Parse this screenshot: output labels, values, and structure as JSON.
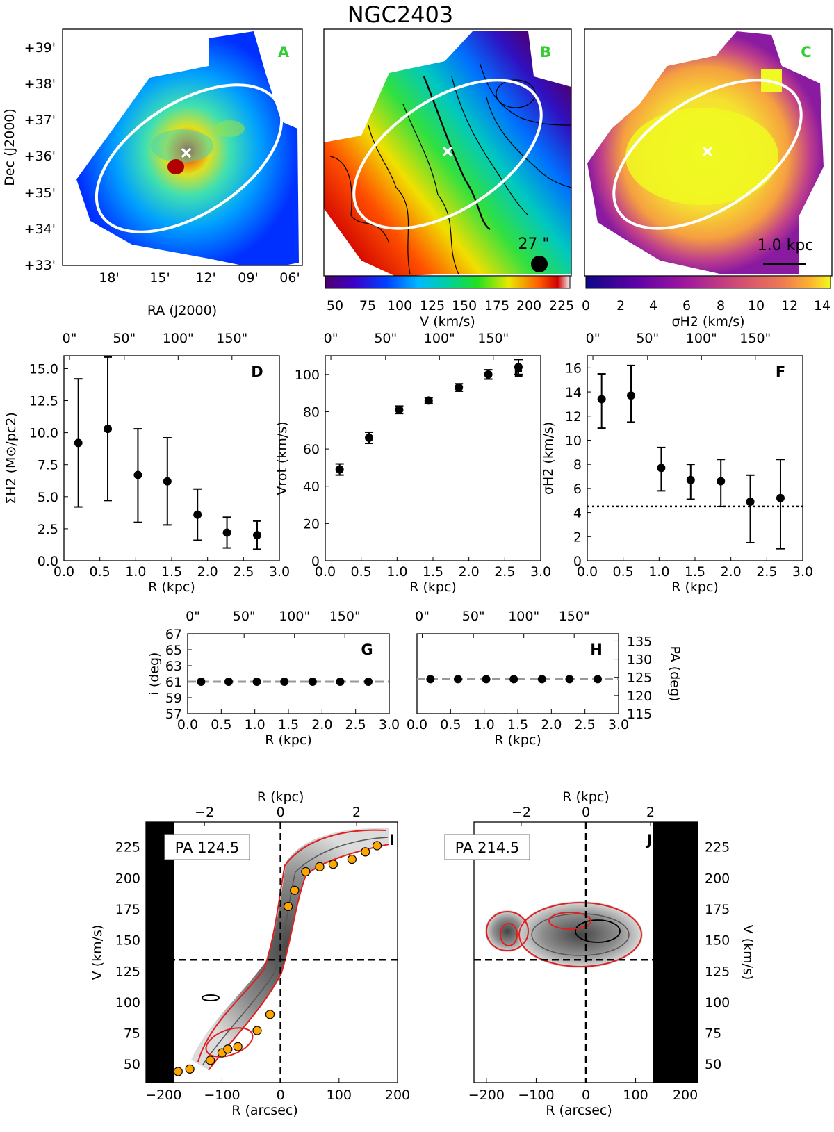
{
  "figure": {
    "title": "NGC2403",
    "colors": {
      "panel_letter": "#33cc33",
      "ellipse": "#ffffff",
      "marker": "#ffffff",
      "pv_points": "#ffa500",
      "pv_contour": "#e02020"
    }
  },
  "panel_A": {
    "letter": "A",
    "xlabel": "RA (J2000)",
    "ylabel": "Dec (J2000)",
    "xticks": [
      "18'",
      "15'",
      "12'",
      "09'",
      "06'"
    ],
    "yticks": [
      "+39'",
      "+38'",
      "+37'",
      "+36'",
      "+35'",
      "+34'",
      "+33'"
    ]
  },
  "panel_B": {
    "letter": "B",
    "beam_label": "27 \"",
    "colorbar_label": "V (km/s)",
    "colorbar_ticks": [
      "50",
      "75",
      "100",
      "125",
      "150",
      "175",
      "200",
      "225"
    ]
  },
  "panel_C": {
    "letter": "C",
    "scalebar_label": "1.0 kpc",
    "colorbar_label": "σH2 (km/s)",
    "colorbar_ticks": [
      "0",
      "2",
      "4",
      "6",
      "8",
      "10",
      "12",
      "14"
    ]
  },
  "chart_data": [
    {
      "id": "D",
      "type": "scatter",
      "letter": "D",
      "xlabel": "R (kpc)",
      "ylabel": "ΣH2 (M⊙/pc2)",
      "xlim": [
        0,
        3.0
      ],
      "ylim": [
        0,
        16
      ],
      "xticks": [
        "0.0",
        "0.5",
        "1.0",
        "1.5",
        "2.0",
        "2.5",
        "3.0"
      ],
      "yticks": [
        "0.0",
        "2.5",
        "5.0",
        "7.5",
        "10.0",
        "12.5",
        "15.0"
      ],
      "top_ticks": [
        "0\"",
        "50\"",
        "100\"",
        "150\""
      ],
      "x": [
        0.2,
        0.61,
        1.03,
        1.44,
        1.86,
        2.27,
        2.69
      ],
      "y": [
        9.2,
        10.3,
        6.7,
        6.2,
        3.6,
        2.2,
        2.0
      ],
      "yerr_low": [
        5.0,
        5.6,
        3.7,
        3.4,
        2.0,
        1.2,
        1.1
      ],
      "yerr_high": [
        5.0,
        5.6,
        3.6,
        3.4,
        2.0,
        1.2,
        1.1
      ]
    },
    {
      "id": "E",
      "type": "scatter",
      "letter": "E",
      "xlabel": "R (kpc)",
      "ylabel": "Vrot (km/s)",
      "xlim": [
        0,
        3.0
      ],
      "ylim": [
        0,
        110
      ],
      "xticks": [
        "0.0",
        "0.5",
        "1.0",
        "1.5",
        "2.0",
        "2.5",
        "3.0"
      ],
      "yticks": [
        "0",
        "20",
        "40",
        "60",
        "80",
        "100"
      ],
      "top_ticks": [
        "0\"",
        "50\"",
        "100\"",
        "150\""
      ],
      "x": [
        0.2,
        0.61,
        1.03,
        1.44,
        1.86,
        2.27,
        2.69
      ],
      "y": [
        49,
        66,
        81,
        86,
        93,
        100,
        104
      ],
      "yerr_low": [
        3,
        3,
        2,
        1.5,
        2,
        2.5,
        4
      ],
      "yerr_high": [
        3,
        3,
        2,
        1.5,
        2,
        2.5,
        4
      ]
    },
    {
      "id": "F",
      "type": "scatter",
      "letter": "F",
      "xlabel": "R (kpc)",
      "ylabel": "σH2 (km/s)",
      "xlim": [
        0,
        3.0
      ],
      "ylim": [
        0,
        17
      ],
      "xticks": [
        "0.0",
        "0.5",
        "1.0",
        "1.5",
        "2.0",
        "2.5",
        "3.0"
      ],
      "yticks": [
        "0",
        "2",
        "4",
        "6",
        "8",
        "10",
        "12",
        "14",
        "16"
      ],
      "top_ticks": [
        "0\"",
        "50\"",
        "100\"",
        "150\""
      ],
      "x": [
        0.2,
        0.61,
        1.03,
        1.44,
        1.86,
        2.27,
        2.69
      ],
      "y": [
        13.4,
        13.7,
        7.7,
        6.7,
        6.6,
        4.9,
        5.2
      ],
      "yerr_low": [
        2.4,
        2.2,
        1.9,
        1.6,
        2.1,
        3.4,
        4.2
      ],
      "yerr_high": [
        2.1,
        2.5,
        1.7,
        1.3,
        1.8,
        2.2,
        3.2
      ],
      "hline": 4.5
    },
    {
      "id": "G",
      "type": "scatter",
      "letter": "G",
      "xlabel": "R (kpc)",
      "ylabel": "i (deg)",
      "xlim": [
        0,
        3.0
      ],
      "ylim": [
        57,
        67
      ],
      "xticks": [
        "0.0",
        "0.5",
        "1.0",
        "1.5",
        "2.0",
        "2.5",
        "3.0"
      ],
      "yticks": [
        "57",
        "59",
        "61",
        "63",
        "65",
        "67"
      ],
      "top_ticks": [
        "0\"",
        "50\"",
        "100\"",
        "150\""
      ],
      "x": [
        0.2,
        0.61,
        1.03,
        1.44,
        1.86,
        2.27,
        2.69
      ],
      "y": [
        61,
        61,
        61,
        61,
        61,
        61,
        61
      ],
      "hline": 61
    },
    {
      "id": "H",
      "type": "scatter",
      "letter": "H",
      "xlabel": "R (kpc)",
      "ylabel": "PA (deg)",
      "xlim": [
        0,
        3.0
      ],
      "ylim": [
        115,
        137
      ],
      "xticks": [
        "0.0",
        "0.5",
        "1.0",
        "1.5",
        "2.0",
        "2.5",
        "3.0"
      ],
      "yticks": [
        "115",
        "120",
        "125",
        "130",
        "135"
      ],
      "top_ticks": [
        "0\"",
        "50\"",
        "100\"",
        "150\""
      ],
      "x": [
        0.2,
        0.61,
        1.03,
        1.44,
        1.86,
        2.27,
        2.69
      ],
      "y": [
        124.5,
        124.5,
        124.5,
        124.5,
        124.5,
        124.5,
        124.5
      ],
      "hline": 124.5
    },
    {
      "id": "I",
      "type": "scatter",
      "letter": "I",
      "pa_label": "PA 124.5",
      "xlabel": "R (arcsec)",
      "top_xlabel": "R (kpc)",
      "ylabel": "V (km/s)",
      "xlim": [
        -230,
        200
      ],
      "ylim": [
        35,
        245
      ],
      "xticks": [
        "−200",
        "−100",
        "0",
        "100",
        "200"
      ],
      "top_ticks": [
        "−2",
        "0",
        "2"
      ],
      "yticks": [
        "50",
        "75",
        "100",
        "125",
        "150",
        "175",
        "200",
        "225"
      ],
      "vsys": 134,
      "x": [
        -175,
        -155,
        -120,
        -100,
        -90,
        -73,
        -40,
        -18,
        13,
        24,
        43,
        67,
        90,
        122,
        145,
        165
      ],
      "y": [
        44,
        46,
        53,
        59,
        62,
        64,
        77,
        90,
        177,
        190,
        205,
        209,
        211,
        215,
        221,
        226
      ]
    },
    {
      "id": "J",
      "type": "scatter",
      "letter": "J",
      "pa_label": "PA 214.5",
      "xlabel": "R (arcsec)",
      "top_xlabel": "R (kpc)",
      "ylabel": "V (km/s)",
      "xlim": [
        -225,
        225
      ],
      "ylim": [
        35,
        245
      ],
      "xticks": [
        "−200",
        "−100",
        "0",
        "100",
        "200"
      ],
      "top_ticks": [
        "−2",
        "0",
        "2"
      ],
      "yticks": [
        "50",
        "75",
        "100",
        "125",
        "150",
        "175",
        "200",
        "225"
      ],
      "vsys": 134
    }
  ]
}
